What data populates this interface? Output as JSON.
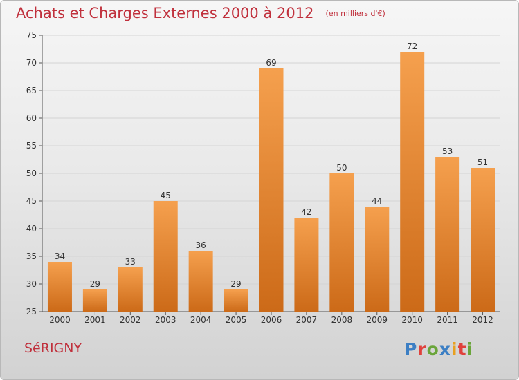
{
  "header": {
    "title": "Achats et Charges Externes 2000 à 2012",
    "unit": "(en milliers d'€)"
  },
  "footer": {
    "commune": "SéRIGNY",
    "logo": "Proxiti"
  },
  "colors": {
    "title": "#c0303c",
    "bar_top": "#f5a04e",
    "bar_bottom": "#cc6a18",
    "grid": "#d4d4d4",
    "logo_letters": [
      "#3c7fc4",
      "#e0413c",
      "#6aa53a",
      "#3c7fc4",
      "#e8a020",
      "#e0413c",
      "#6aa53a"
    ]
  },
  "chart_data": {
    "type": "bar",
    "title": "Achats et Charges Externes 2000 à 2012",
    "subtitle": "(en milliers d'€)",
    "xlabel": "",
    "ylabel": "",
    "categories": [
      "2000",
      "2001",
      "2002",
      "2003",
      "2004",
      "2005",
      "2006",
      "2007",
      "2008",
      "2009",
      "2010",
      "2011",
      "2012"
    ],
    "values": [
      34,
      29,
      33,
      45,
      36,
      29,
      69,
      42,
      50,
      44,
      72,
      53,
      51
    ],
    "ylim": [
      25,
      75
    ],
    "yticks": [
      25,
      30,
      35,
      40,
      45,
      50,
      55,
      60,
      65,
      70,
      75
    ],
    "grid": true,
    "data_labels": true
  }
}
